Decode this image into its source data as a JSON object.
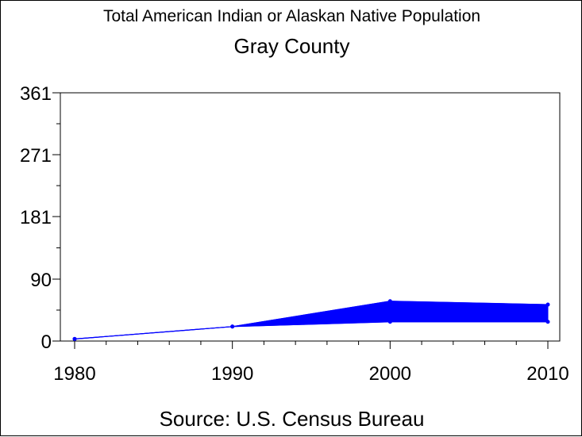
{
  "chart_data": {
    "type": "area",
    "title": "Total American Indian or Alaskan Native Population",
    "subtitle": "Gray County",
    "source": "Source: U.S. Census Bureau",
    "xlabel": "",
    "ylabel": "",
    "x": [
      1980,
      1990,
      2000,
      2010
    ],
    "xticks": [
      "1980",
      "1990",
      "2000",
      "2010"
    ],
    "yticks": [
      "0",
      "90",
      "181",
      "271",
      "361"
    ],
    "ytick_values": [
      0,
      90,
      181,
      271,
      361
    ],
    "ylim": [
      0,
      361
    ],
    "xlim": [
      1980,
      2010
    ],
    "series": [
      {
        "values": [
          3,
          21,
          58,
          53
        ]
      },
      {
        "values": [
          3,
          21,
          28,
          28
        ]
      }
    ],
    "color": "#0000ff",
    "grid": false,
    "legend": "none"
  }
}
